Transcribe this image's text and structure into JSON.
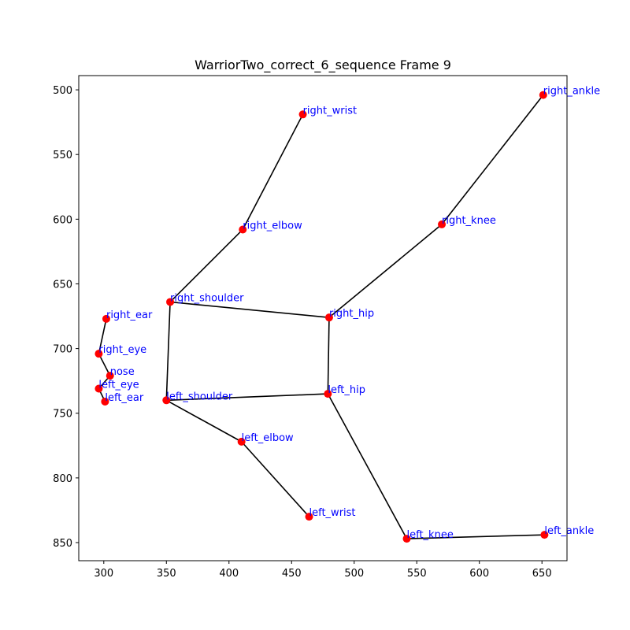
{
  "chart_data": {
    "type": "scatter",
    "title": "WarriorTwo_correct_6_sequence Frame 9",
    "xlabel": "",
    "ylabel": "",
    "xlim": [
      280,
      670
    ],
    "ylim": [
      864,
      489
    ],
    "y_inverted": true,
    "grid": false,
    "x_ticks": [
      300,
      350,
      400,
      450,
      500,
      550,
      600,
      650
    ],
    "y_ticks": [
      500,
      550,
      600,
      650,
      700,
      750,
      800,
      850
    ],
    "point_color": "#ff0000",
    "label_color": "#0000ff",
    "line_color": "#000000",
    "points": [
      {
        "name": "nose",
        "x": 305,
        "y": 721
      },
      {
        "name": "left_eye",
        "x": 296,
        "y": 731
      },
      {
        "name": "right_eye",
        "x": 296,
        "y": 704
      },
      {
        "name": "left_ear",
        "x": 301,
        "y": 741
      },
      {
        "name": "right_ear",
        "x": 302,
        "y": 677
      },
      {
        "name": "left_shoulder",
        "x": 350,
        "y": 740
      },
      {
        "name": "right_shoulder",
        "x": 353,
        "y": 664
      },
      {
        "name": "left_elbow",
        "x": 410,
        "y": 772
      },
      {
        "name": "right_elbow",
        "x": 411,
        "y": 608
      },
      {
        "name": "left_wrist",
        "x": 464,
        "y": 830
      },
      {
        "name": "right_wrist",
        "x": 459,
        "y": 519
      },
      {
        "name": "left_hip",
        "x": 479,
        "y": 735
      },
      {
        "name": "right_hip",
        "x": 480,
        "y": 676
      },
      {
        "name": "left_knee",
        "x": 542,
        "y": 847
      },
      {
        "name": "right_knee",
        "x": 570,
        "y": 604
      },
      {
        "name": "left_ankle",
        "x": 652,
        "y": 844
      },
      {
        "name": "right_ankle",
        "x": 651,
        "y": 504
      }
    ],
    "connections": [
      [
        "right_wrist",
        "right_elbow"
      ],
      [
        "right_elbow",
        "right_shoulder"
      ],
      [
        "right_shoulder",
        "left_shoulder"
      ],
      [
        "right_shoulder",
        "right_hip"
      ],
      [
        "right_hip",
        "left_hip"
      ],
      [
        "right_hip",
        "right_knee"
      ],
      [
        "right_knee",
        "right_ankle"
      ],
      [
        "left_shoulder",
        "left_hip"
      ],
      [
        "left_shoulder",
        "left_elbow"
      ],
      [
        "left_elbow",
        "left_wrist"
      ],
      [
        "left_hip",
        "left_knee"
      ],
      [
        "left_knee",
        "left_ankle"
      ],
      [
        "right_ear",
        "right_eye"
      ],
      [
        "right_eye",
        "nose"
      ],
      [
        "nose",
        "left_eye"
      ],
      [
        "left_eye",
        "left_ear"
      ]
    ]
  }
}
